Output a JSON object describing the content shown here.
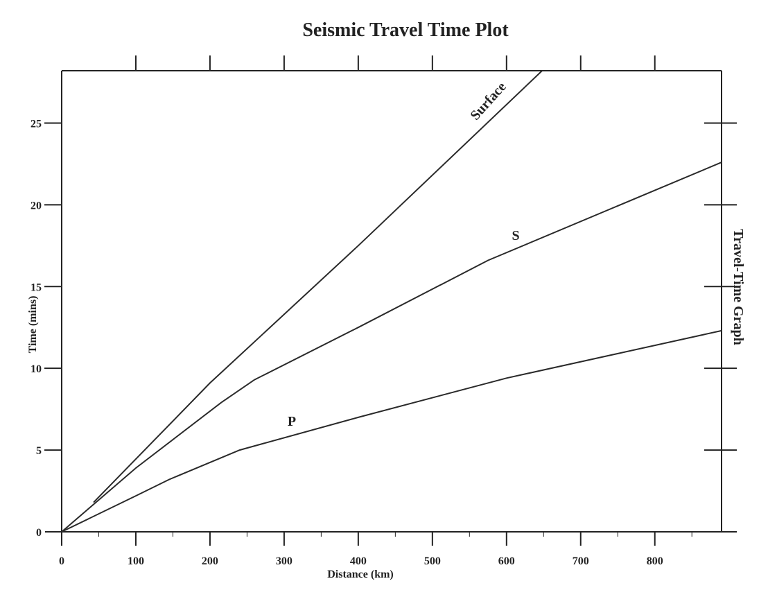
{
  "chart_data": {
    "type": "line",
    "title": "Seismic Travel Time Plot",
    "xlabel": "Distance (km)",
    "ylabel": "Time (mins)",
    "side_label": "Travel-Time Graph",
    "xlim": [
      0,
      890
    ],
    "ylim": [
      0,
      28.2
    ],
    "x_ticks": [
      0,
      100,
      200,
      300,
      400,
      500,
      600,
      700,
      800
    ],
    "x_tick_labels": [
      "0",
      "100",
      "200",
      "300",
      "400",
      "500",
      "600",
      "700",
      "800"
    ],
    "y_ticks": [
      0,
      5,
      10,
      15,
      20,
      25
    ],
    "y_tick_labels": [
      "0",
      "5",
      "10",
      "15",
      "20",
      "25"
    ],
    "grid": false,
    "legend": "none",
    "series": [
      {
        "name": "Surface",
        "x": [
          43,
          200,
          400,
          648
        ],
        "y": [
          1.8,
          9.1,
          17.5,
          28.2
        ]
      },
      {
        "name": "S",
        "x": [
          0,
          100,
          215,
          260,
          400,
          575,
          890
        ],
        "y": [
          0,
          3.9,
          7.9,
          9.3,
          12.5,
          16.6,
          22.6
        ]
      },
      {
        "name": "P",
        "x": [
          0,
          100,
          145,
          240,
          400,
          600,
          890
        ],
        "y": [
          0,
          2.2,
          3.2,
          5.0,
          7.0,
          9.4,
          12.3
        ]
      }
    ]
  }
}
